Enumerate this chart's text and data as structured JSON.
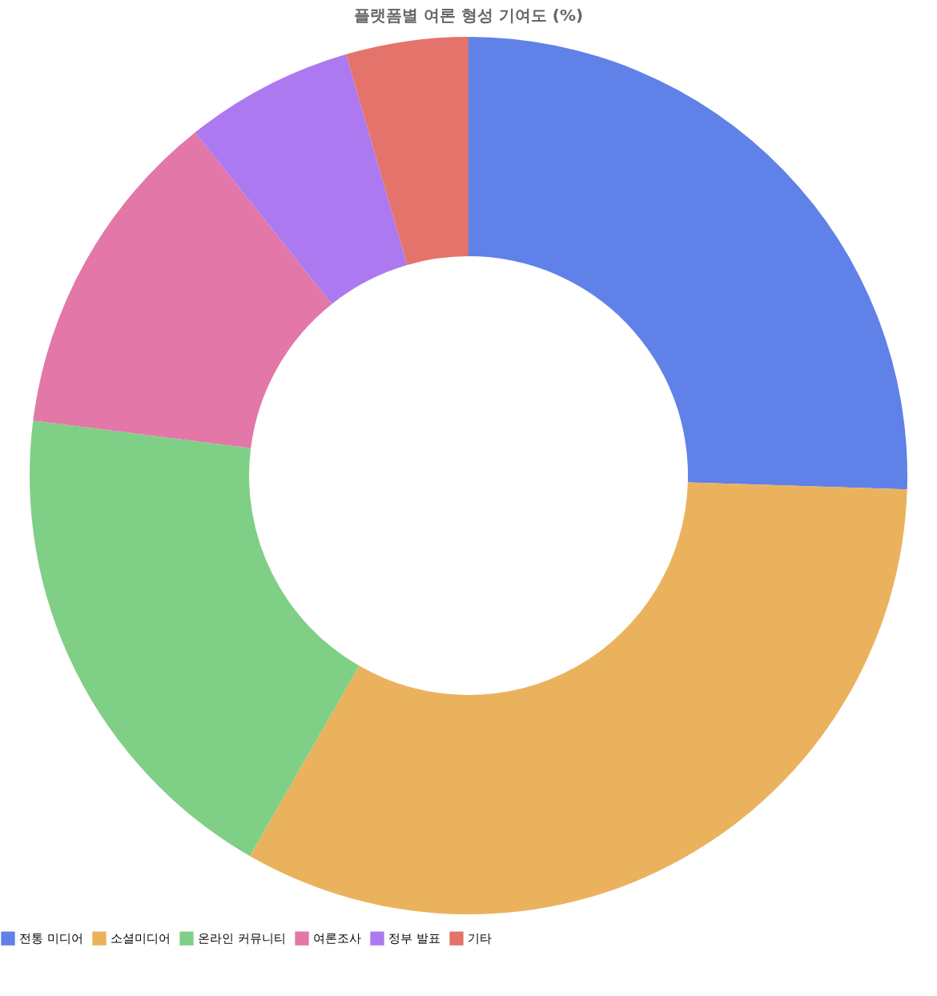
{
  "chart_data": {
    "type": "donut",
    "title": "플랫폼별 여론 형성 기여도 (%)",
    "categories": [
      "전통 미디어",
      "소셜미디어",
      "온라인 커뮤니티",
      "여론조사",
      "정부 발표",
      "기타"
    ],
    "values": [
      25.5,
      32.8,
      18.7,
      12.3,
      6.2,
      4.5
    ],
    "colors": [
      "#6081e8",
      "#ebb25e",
      "#80cf86",
      "#e277a8",
      "#ad79f0",
      "#e4736c"
    ],
    "legend": "bottom"
  }
}
